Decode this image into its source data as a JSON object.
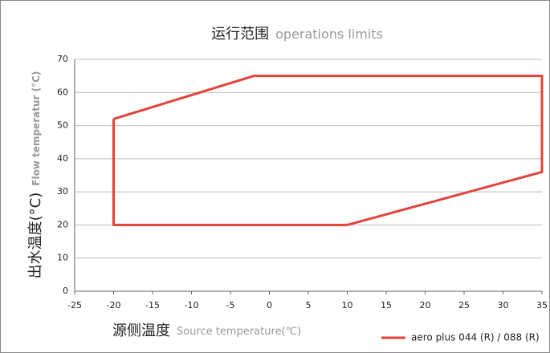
{
  "chart_data": {
    "type": "line",
    "title": "运行范围",
    "title_en": "operations limits",
    "x_label": "源侧温度",
    "x_label_en": "Source temperature(℃)",
    "y_label": "出水温度(°C)",
    "y_label_en": "Flow temperatur (°C)",
    "x": [
      -20,
      -2,
      35,
      35,
      10,
      -20,
      -20
    ],
    "series": [
      {
        "name": "aero plus 044 (R) / 088 (R)",
        "color": "#e2433a",
        "values": [
          52,
          65,
          65,
          36,
          20,
          20,
          52
        ]
      }
    ],
    "xlim": [
      -25,
      35
    ],
    "xticks": [
      -25,
      -20,
      -15,
      -10,
      -5,
      0,
      5,
      10,
      15,
      20,
      25,
      30,
      35
    ],
    "ylim": [
      0,
      70
    ],
    "yticks": [
      0,
      10,
      20,
      30,
      40,
      50,
      60,
      70
    ],
    "grid": true,
    "legend": "bottom-right"
  }
}
